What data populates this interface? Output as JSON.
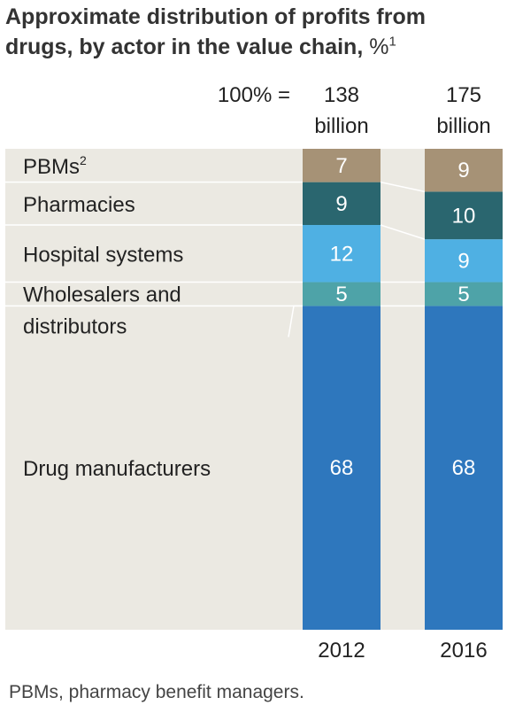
{
  "chart_data": {
    "type": "bar",
    "stacked": true,
    "percent": true,
    "title_line1": "Approximate distribution of profits from",
    "title_line2": "drugs, by actor in the value chain,",
    "title_unit": "%",
    "title_sup": "1",
    "total_label": "100% =",
    "categories": [
      "2012",
      "2016"
    ],
    "totals": [
      {
        "amount": "138",
        "unit": "billion"
      },
      {
        "amount": "175",
        "unit": "billion"
      }
    ],
    "series": [
      {
        "name": "Drug manufacturers",
        "sup": "",
        "values": [
          68,
          68
        ],
        "color": "#2e77bd",
        "label_color": "#ffffff"
      },
      {
        "name": "Wholesalers and distributors",
        "name_lines": [
          "Wholesalers and",
          "distributors"
        ],
        "sup": "",
        "values": [
          5,
          5
        ],
        "color": "#4ea3a8",
        "label_color": "#ffffff"
      },
      {
        "name": "Hospital systems",
        "sup": "",
        "values": [
          12,
          9
        ],
        "color": "#4fb0e3",
        "label_color": "#ffffff"
      },
      {
        "name": "Pharmacies",
        "sup": "",
        "values": [
          9,
          10
        ],
        "color": "#2a666f",
        "label_color": "#ffffff"
      },
      {
        "name": "PBMs",
        "sup": "2",
        "values": [
          7,
          9
        ],
        "color": "#a69276",
        "label_color": "#ffffff"
      }
    ],
    "colors": {
      "band": "#ebe9e2",
      "separator": "#ffffff",
      "axis_text": "#222222"
    }
  },
  "footnote": "PBMs, pharmacy benefit managers."
}
